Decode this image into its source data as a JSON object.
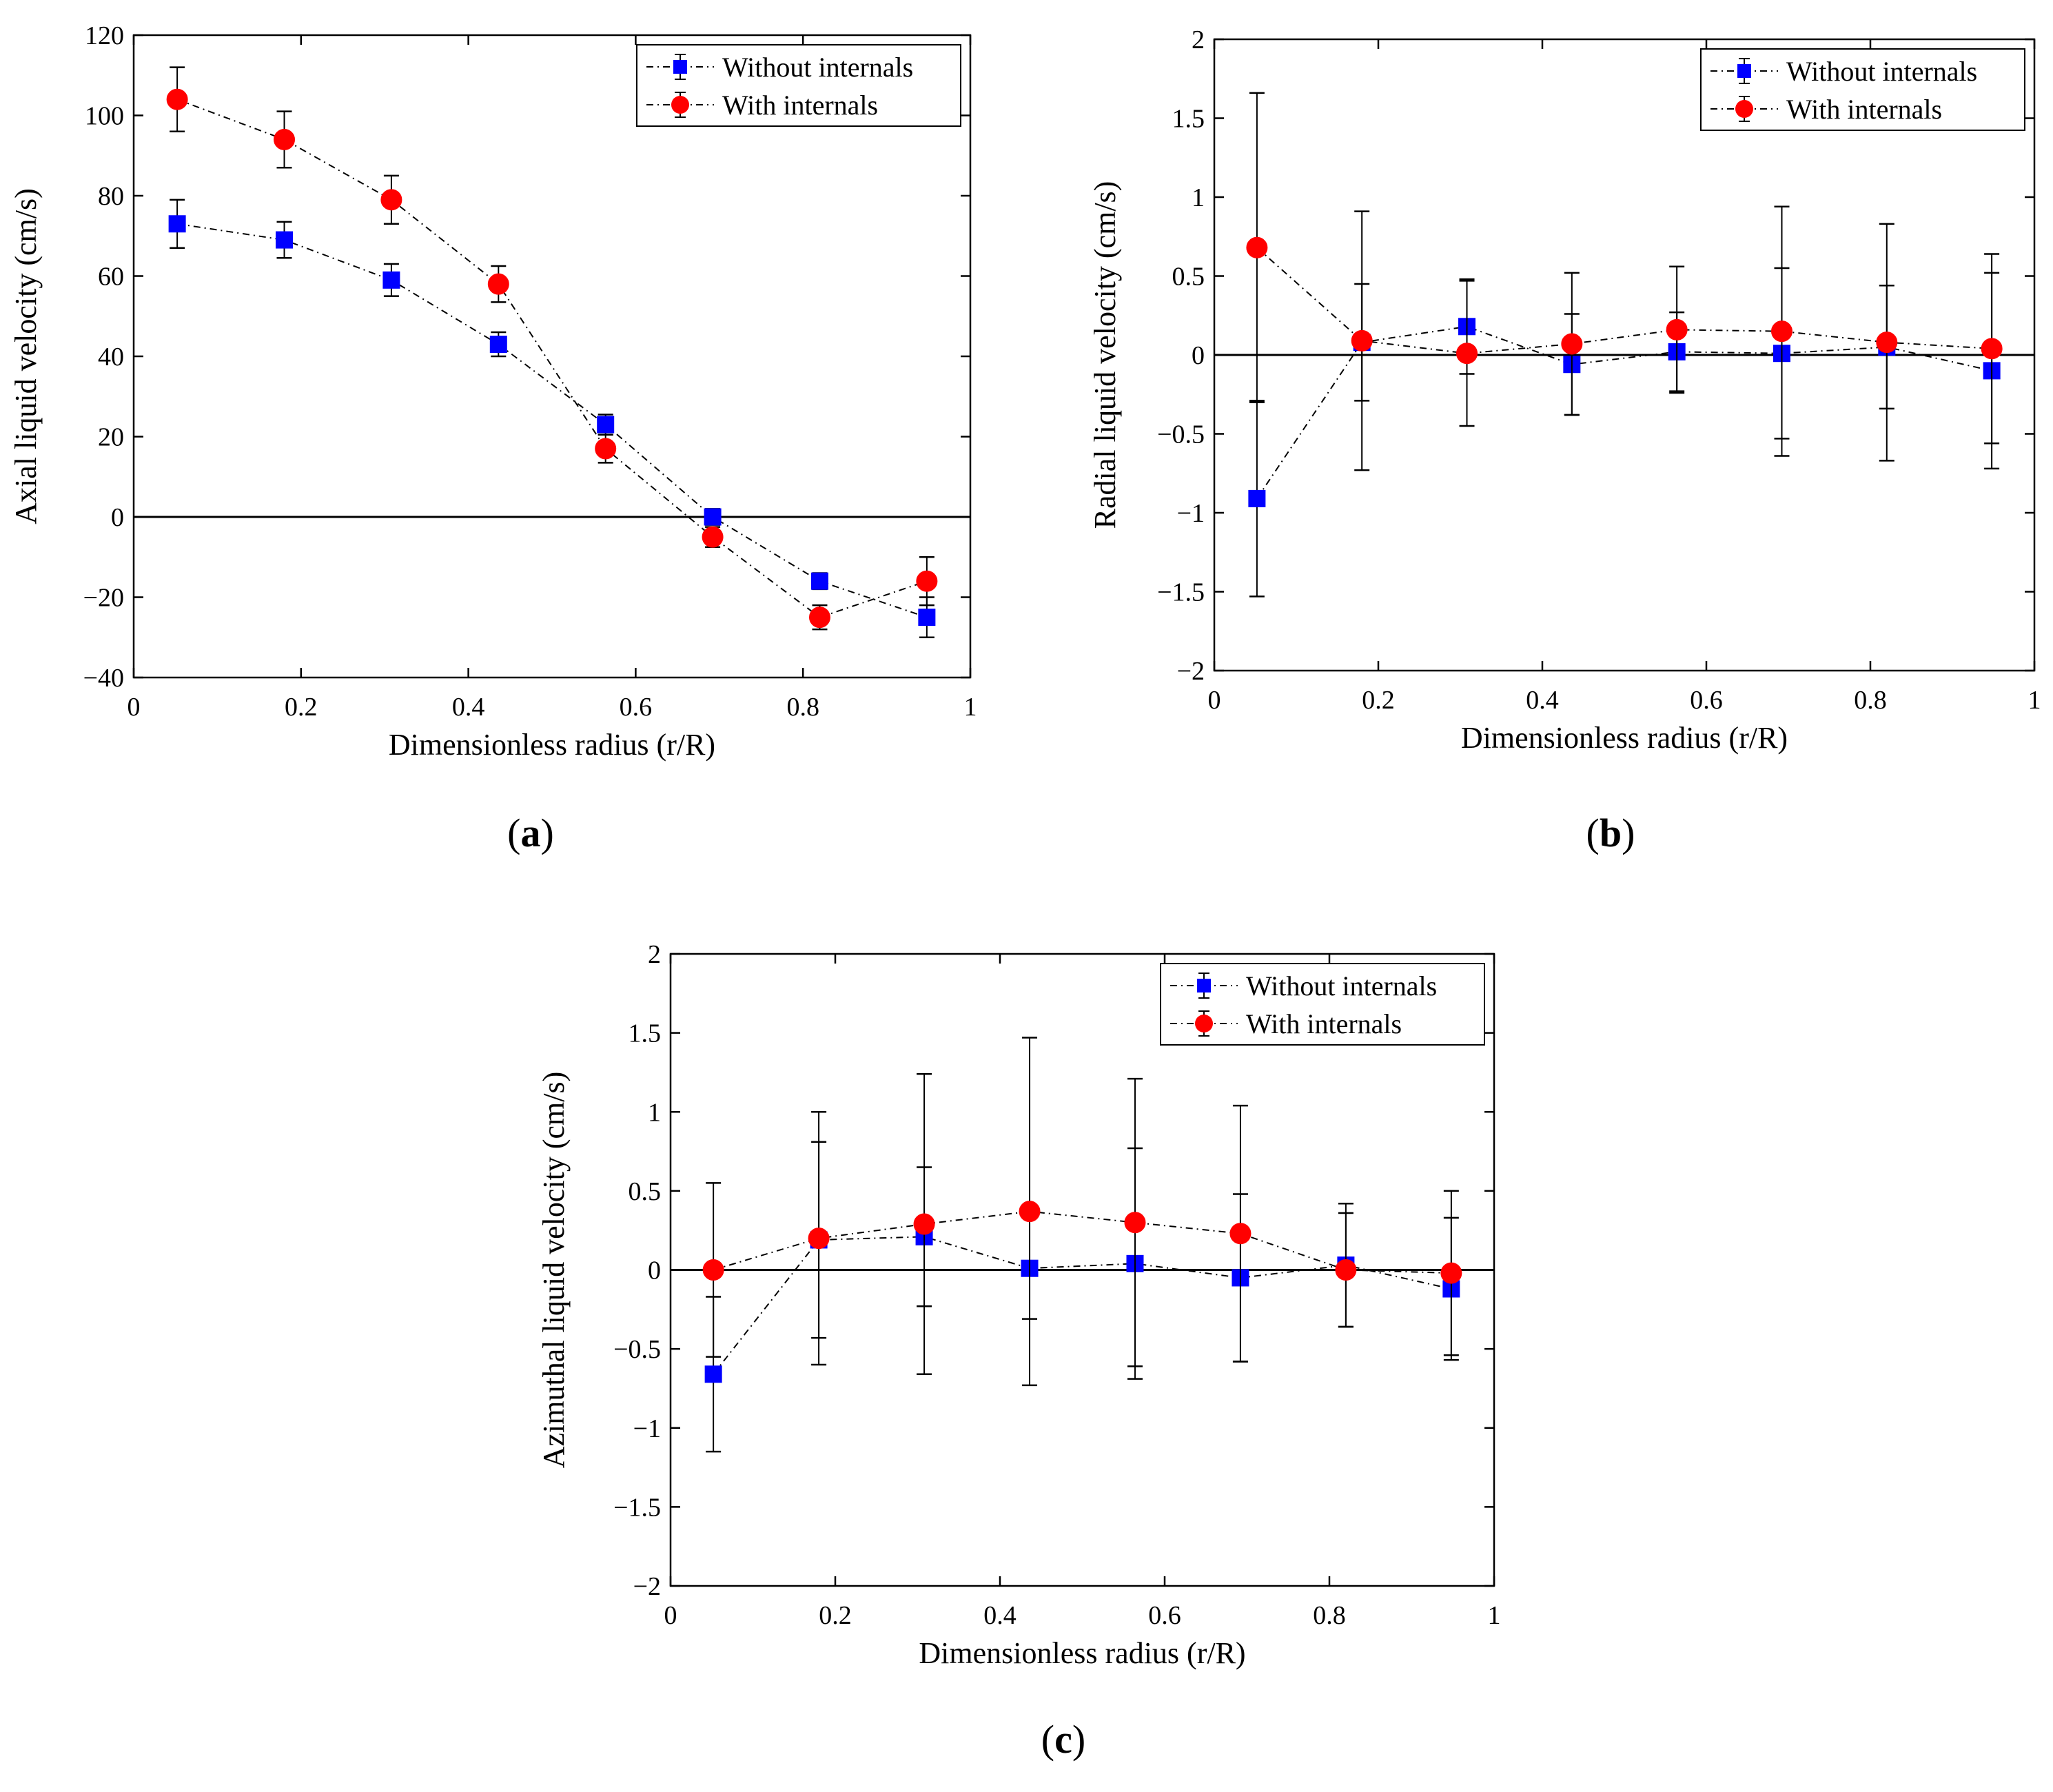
{
  "colors": {
    "without_internals": "#0000ff",
    "with_internals": "#ff0000",
    "axes": "#000000"
  },
  "chart_data": [
    {
      "type": "line",
      "panel_label": "a",
      "xlabel": "Dimensionless radius (r/R)",
      "ylabel": "Axial liquid velocity (cm/s)",
      "xlim": [
        0,
        1
      ],
      "ylim": [
        -40,
        120
      ],
      "xticks": [
        0,
        0.2,
        0.4,
        0.6,
        0.8,
        1
      ],
      "xtick_labels": [
        "0",
        "0.2",
        "0.4",
        "0.6",
        "0.8",
        "1"
      ],
      "yticks": [
        -40,
        -20,
        0,
        20,
        40,
        60,
        80,
        100,
        120
      ],
      "ytick_labels": [
        "−40",
        "−20",
        "0",
        "20",
        "40",
        "60",
        "80",
        "100",
        "120"
      ],
      "zero_line": true,
      "legend_position": "top-right",
      "series": [
        {
          "name": "Without internals",
          "marker": "square",
          "x": [
            0.052,
            0.18,
            0.308,
            0.436,
            0.564,
            0.692,
            0.82,
            0.948
          ],
          "y": [
            73,
            69,
            59,
            43,
            23,
            0,
            -16,
            -25
          ],
          "err": [
            6,
            4.5,
            4,
            3,
            2.5,
            2,
            2,
            5
          ]
        },
        {
          "name": "With internals",
          "marker": "circle",
          "x": [
            0.052,
            0.18,
            0.308,
            0.436,
            0.564,
            0.692,
            0.82,
            0.948
          ],
          "y": [
            104,
            94,
            79,
            58,
            17,
            -5,
            -25,
            -16
          ],
          "err": [
            8,
            7,
            6,
            4.5,
            3.5,
            2.5,
            3,
            6
          ]
        }
      ]
    },
    {
      "type": "line",
      "panel_label": "b",
      "xlabel": "Dimensionless radius (r/R)",
      "ylabel": "Radial liquid velocity (cm/s)",
      "xlim": [
        0,
        1
      ],
      "ylim": [
        -2,
        2
      ],
      "xticks": [
        0,
        0.2,
        0.4,
        0.6,
        0.8,
        1
      ],
      "xtick_labels": [
        "0",
        "0.2",
        "0.4",
        "0.6",
        "0.8",
        "1"
      ],
      "yticks": [
        -2,
        -1.5,
        -1,
        -0.5,
        0,
        0.5,
        1,
        1.5,
        2
      ],
      "ytick_labels": [
        "−2",
        "−1.5",
        "−1",
        "−0.5",
        "0",
        "0.5",
        "1",
        "1.5",
        "2"
      ],
      "zero_line": true,
      "legend_position": "top-right",
      "series": [
        {
          "name": "Without internals",
          "marker": "square",
          "x": [
            0.052,
            0.18,
            0.308,
            0.436,
            0.564,
            0.692,
            0.82,
            0.948
          ],
          "y": [
            -0.91,
            0.08,
            0.18,
            -0.06,
            0.02,
            0.01,
            0.05,
            -0.1
          ],
          "err": [
            0.62,
            0.37,
            0.3,
            0.32,
            0.25,
            0.54,
            0.39,
            0.62
          ]
        },
        {
          "name": "With internals",
          "marker": "circle",
          "x": [
            0.052,
            0.18,
            0.308,
            0.436,
            0.564,
            0.692,
            0.82,
            0.948
          ],
          "y": [
            0.68,
            0.09,
            0.01,
            0.07,
            0.16,
            0.15,
            0.08,
            0.04
          ],
          "err": [
            0.98,
            0.82,
            0.46,
            0.45,
            0.4,
            0.79,
            0.75,
            0.6
          ]
        }
      ]
    },
    {
      "type": "line",
      "panel_label": "c",
      "xlabel": "Dimensionless radius (r/R)",
      "ylabel": "Azimuthal liquid velocity (cm/s)",
      "xlim": [
        0,
        1
      ],
      "ylim": [
        -2,
        2
      ],
      "xticks": [
        0,
        0.2,
        0.4,
        0.6,
        0.8,
        1
      ],
      "xtick_labels": [
        "0",
        "0.2",
        "0.4",
        "0.6",
        "0.8",
        "1"
      ],
      "yticks": [
        -2,
        -1.5,
        -1,
        -0.5,
        0,
        0.5,
        1,
        1.5,
        2
      ],
      "ytick_labels": [
        "−2",
        "−1.5",
        "−1",
        "−0.5",
        "0",
        "0.5",
        "1",
        "1.5",
        "2"
      ],
      "zero_line": true,
      "legend_position": "top-right",
      "series": [
        {
          "name": "Without internals",
          "marker": "square",
          "x": [
            0.052,
            0.18,
            0.308,
            0.436,
            0.564,
            0.692,
            0.82,
            0.948
          ],
          "y": [
            -0.66,
            0.19,
            0.21,
            0.01,
            0.04,
            -0.05,
            0.03,
            -0.12
          ],
          "err": [
            0.49,
            0.62,
            0.44,
            0.32,
            0.73,
            0.53,
            0.39,
            0.45
          ]
        },
        {
          "name": "With internals",
          "marker": "circle",
          "x": [
            0.052,
            0.18,
            0.308,
            0.436,
            0.564,
            0.692,
            0.82,
            0.948
          ],
          "y": [
            0.0,
            0.2,
            0.29,
            0.37,
            0.3,
            0.23,
            0.0,
            -0.02
          ],
          "err": [
            0.55,
            0.8,
            0.95,
            1.1,
            0.91,
            0.81,
            0.36,
            0.52
          ]
        }
      ]
    }
  ]
}
